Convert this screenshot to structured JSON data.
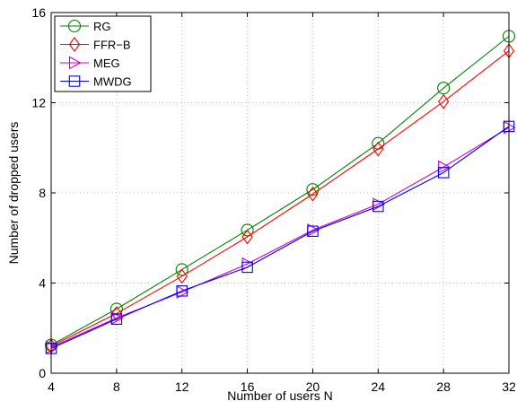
{
  "chart_data": {
    "type": "line",
    "title": "",
    "xlabel": "Number of users N",
    "ylabel": "Number of dropped users",
    "x": [
      4,
      8,
      12,
      16,
      20,
      24,
      28,
      32
    ],
    "xticks": [
      "4",
      "8",
      "12",
      "16",
      "20",
      "24",
      "28",
      "32"
    ],
    "yticks": [
      "0",
      "4",
      "8",
      "12",
      "16"
    ],
    "xlim": [
      4,
      32
    ],
    "ylim": [
      0,
      16
    ],
    "grid": true,
    "legend_position": "top-left",
    "series": [
      {
        "name": "RG",
        "marker": "circle",
        "color": "#008000",
        "values": [
          1.25,
          2.85,
          4.6,
          6.35,
          8.15,
          10.2,
          12.65,
          14.95
        ]
      },
      {
        "name": "FFR−B",
        "marker": "diamond",
        "color": "#ff0000",
        "values": [
          1.2,
          2.65,
          4.3,
          6.05,
          7.95,
          9.95,
          12.05,
          14.3
        ]
      },
      {
        "name": "MEG",
        "marker": "triangle-right",
        "color": "#cc00cc",
        "values": [
          1.15,
          2.45,
          3.6,
          4.85,
          6.35,
          7.5,
          9.15,
          10.9
        ]
      },
      {
        "name": "MWDG",
        "marker": "square",
        "color": "#0000ff",
        "values": [
          1.1,
          2.4,
          3.65,
          4.7,
          6.3,
          7.4,
          8.9,
          10.95
        ]
      }
    ]
  }
}
